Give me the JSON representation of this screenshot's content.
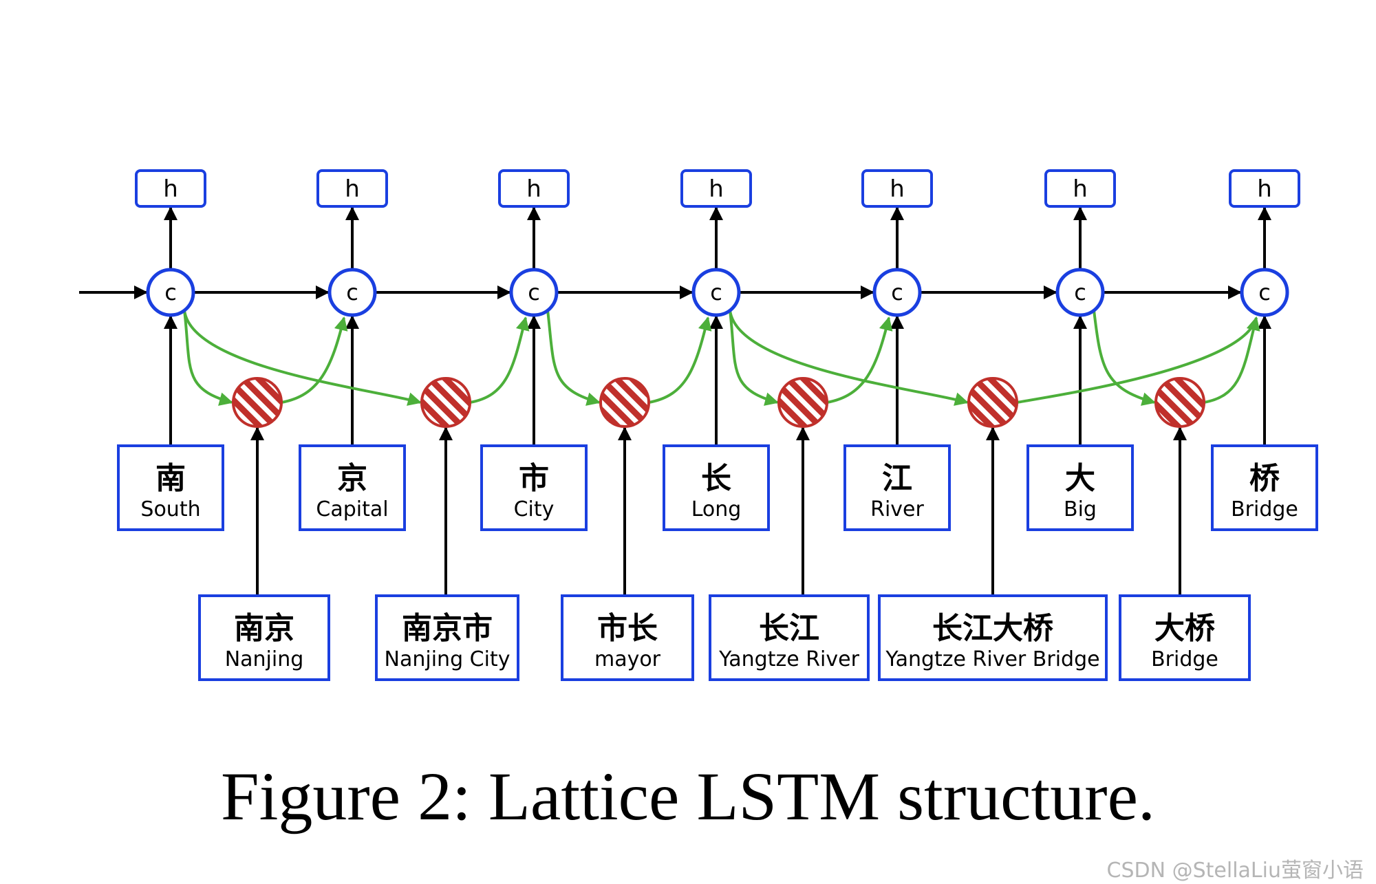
{
  "hidden_label": "h",
  "cell_label": "c",
  "chars": [
    {
      "zh": "南",
      "en": "South"
    },
    {
      "zh": "京",
      "en": "Capital"
    },
    {
      "zh": "市",
      "en": "City"
    },
    {
      "zh": "长",
      "en": "Long"
    },
    {
      "zh": "江",
      "en": "River"
    },
    {
      "zh": "大",
      "en": "Big"
    },
    {
      "zh": "桥",
      "en": "Bridge"
    }
  ],
  "words": [
    {
      "zh": "南京",
      "en": "Nanjing",
      "from": 0,
      "to": 1
    },
    {
      "zh": "南京市",
      "en": "Nanjing City",
      "from": 0,
      "to": 2
    },
    {
      "zh": "市长",
      "en": "mayor",
      "from": 2,
      "to": 3
    },
    {
      "zh": "长江",
      "en": "Yangtze  River",
      "from": 3,
      "to": 4
    },
    {
      "zh": "长江大桥",
      "en": "Yangtze  River Bridge",
      "from": 3,
      "to": 6
    },
    {
      "zh": "大桥",
      "en": "Bridge",
      "from": 5,
      "to": 6
    }
  ],
  "colors": {
    "box_border": "#1a3fe0",
    "cell_border": "#1a3fe0",
    "word_cell": "#c0302b",
    "word_edge": "#4caf3a"
  },
  "caption": "Figure 2: Lattice LSTM structure.",
  "watermark": "CSDN @StellaLiu萤窗小语"
}
